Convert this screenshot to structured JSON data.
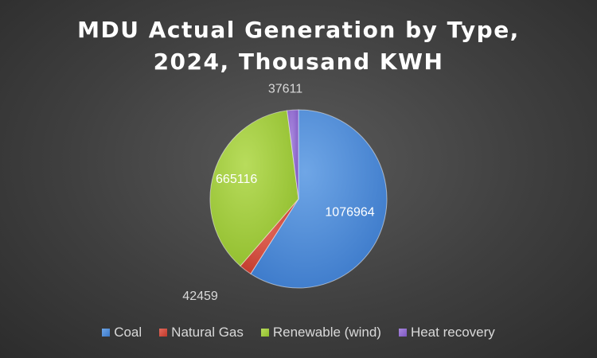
{
  "chart_data": {
    "type": "pie",
    "title": [
      "MDU Actual Generation by Type,",
      "2024, Thousand KWH"
    ],
    "slices": [
      {
        "label": "Coal",
        "value": 1076964,
        "color": "#3a78c9",
        "light": "#6fa6e6"
      },
      {
        "label": "Natural Gas",
        "value": 42459,
        "color": "#c0392b",
        "light": "#e36a5c"
      },
      {
        "label": "Renewable (wind)",
        "value": 665116,
        "color": "#8fbc2b",
        "light": "#b8dc5c"
      },
      {
        "label": "Heat recovery",
        "value": 37611,
        "color": "#7e57c2",
        "light": "#a888dd"
      }
    ],
    "legend_position": "bottom"
  }
}
